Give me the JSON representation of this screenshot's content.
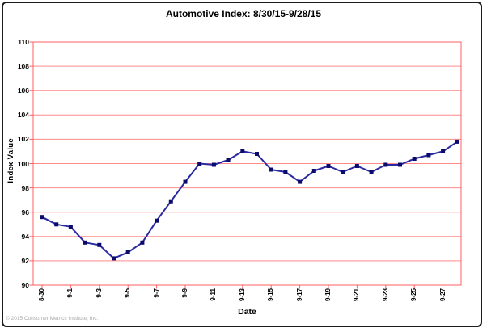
{
  "title": "Automotive Index: 8/30/15-9/28/15",
  "footer": "© 2015 Consumer Metrics Institute, Inc.",
  "colors": {
    "line": "#2929a3",
    "marker": "#0b0b6b",
    "grid": "#ff8a8a",
    "plot_border": "#ff5f5f",
    "footer_text": "#a9a9a9"
  },
  "chart_data": {
    "type": "line",
    "title": "Automotive Index: 8/30/15-9/28/15",
    "xlabel": "Date",
    "ylabel": "Index Value",
    "ylim": [
      90,
      110
    ],
    "y_tick_labels": [
      "110",
      "108",
      "106",
      "104",
      "102",
      "100",
      "98",
      "96",
      "94",
      "92",
      "90"
    ],
    "x": [
      "8-30",
      "8-31",
      "9-1",
      "9-2",
      "9-3",
      "9-4",
      "9-5",
      "9-6",
      "9-7",
      "9-8",
      "9-9",
      "9-10",
      "9-11",
      "9-12",
      "9-13",
      "9-14",
      "9-15",
      "9-16",
      "9-17",
      "9-18",
      "9-19",
      "9-20",
      "9-21",
      "9-22",
      "9-23",
      "9-24",
      "9-25",
      "9-26",
      "9-27",
      "9-28"
    ],
    "x_tick_labels": [
      "8-30",
      "9-1",
      "9-3",
      "9-5",
      "9-7",
      "9-9",
      "9-11",
      "9-13",
      "9-15",
      "9-17",
      "9-19",
      "9-21",
      "9-23",
      "9-25",
      "9-27"
    ],
    "x_tick_every": 2,
    "series": [
      {
        "name": "Automotive Index",
        "values": [
          95.6,
          95.0,
          94.8,
          93.5,
          93.3,
          92.2,
          92.7,
          93.5,
          95.3,
          96.9,
          98.5,
          100.0,
          99.9,
          100.3,
          101.0,
          100.8,
          99.5,
          99.3,
          98.5,
          99.4,
          99.8,
          99.3,
          99.8,
          99.3,
          99.9,
          99.9,
          100.4,
          100.7,
          101.0,
          101.8
        ]
      }
    ],
    "grid": "horizontal",
    "legend": "none",
    "marker": "square"
  }
}
